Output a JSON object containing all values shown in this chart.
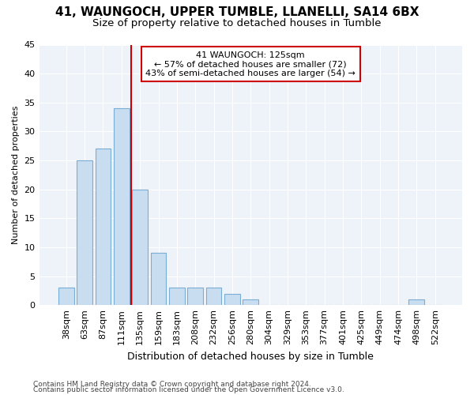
{
  "title1": "41, WAUNGOCH, UPPER TUMBLE, LLANELLI, SA14 6BX",
  "title2": "Size of property relative to detached houses in Tumble",
  "xlabel": "Distribution of detached houses by size in Tumble",
  "ylabel": "Number of detached properties",
  "categories": [
    "38sqm",
    "63sqm",
    "87sqm",
    "111sqm",
    "135sqm",
    "159sqm",
    "183sqm",
    "208sqm",
    "232sqm",
    "256sqm",
    "280sqm",
    "304sqm",
    "329sqm",
    "353sqm",
    "377sqm",
    "401sqm",
    "425sqm",
    "449sqm",
    "474sqm",
    "498sqm",
    "522sqm"
  ],
  "values": [
    3,
    25,
    27,
    34,
    20,
    9,
    3,
    3,
    3,
    2,
    1,
    0,
    0,
    0,
    0,
    0,
    0,
    0,
    0,
    1,
    0
  ],
  "bar_color": "#c9ddf0",
  "bar_edge_color": "#7aadd4",
  "vline_x_pos": 3.5,
  "vline_color": "#cc0000",
  "annotation_title": "41 WAUNGOCH: 125sqm",
  "annotation_line1": "← 57% of detached houses are smaller (72)",
  "annotation_line2": "43% of semi-detached houses are larger (54) →",
  "annotation_box_color": "#ffffff",
  "annotation_box_edge": "#cc0000",
  "ylim": [
    0,
    45
  ],
  "yticks": [
    0,
    5,
    10,
    15,
    20,
    25,
    30,
    35,
    40,
    45
  ],
  "footer1": "Contains HM Land Registry data © Crown copyright and database right 2024.",
  "footer2": "Contains public sector information licensed under the Open Government Licence v3.0.",
  "bg_color": "#eef2f9",
  "fig_bg_color": "#ffffff",
  "title1_fontsize": 11,
  "title2_fontsize": 9.5,
  "xlabel_fontsize": 9,
  "ylabel_fontsize": 8,
  "tick_fontsize": 8,
  "footer_fontsize": 6.5
}
